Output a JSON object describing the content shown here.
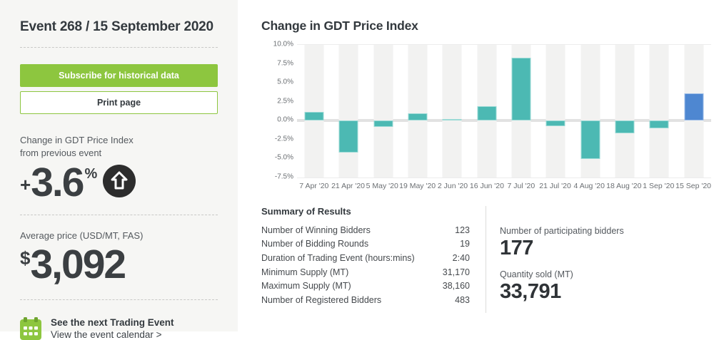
{
  "sidebar": {
    "title": "Event 268 / 15 September 2020",
    "subscribe_label": "Subscribe for historical data",
    "print_label": "Print page",
    "change_label_line1": "Change in GDT Price Index",
    "change_label_line2": "from previous event",
    "change_sign": "+",
    "change_value": "3.6",
    "change_unit": "%",
    "avg_price_label": "Average price (USD/MT, FAS)",
    "avg_price_currency": "$",
    "avg_price_value": "3,092",
    "next_event_title": "See the next Trading Event",
    "next_event_link": "View the event calendar >"
  },
  "chart": {
    "title": "Change in GDT Price Index"
  },
  "chart_data": {
    "type": "bar",
    "title": "Change in GDT Price Index",
    "categories": [
      "7 Apr '20",
      "21 Apr '20",
      "5 May '20",
      "19 May '20",
      "2 Jun '20",
      "16 Jun '20",
      "7 Jul '20",
      "21 Jul '20",
      "4 Aug '20",
      "18 Aug '20",
      "1 Sep '20",
      "15 Sep '20"
    ],
    "values": [
      1.2,
      -4.2,
      -0.8,
      1.0,
      0.1,
      1.9,
      8.3,
      -0.7,
      -5.1,
      -1.7,
      -1.0,
      3.6
    ],
    "highlight_index": 11,
    "ylabel": "",
    "xlabel": "",
    "ylim": [
      -7.5,
      10.0
    ],
    "ytick_labels": [
      "10.0%",
      "7.5%",
      "5.0%",
      "2.5%",
      "0.0%",
      "-2.5%",
      "-5.0%",
      "-7.5%"
    ],
    "ytick_values": [
      10.0,
      7.5,
      5.0,
      2.5,
      0.0,
      -2.5,
      -5.0,
      -7.5
    ],
    "grid": "zero-line and top line only, alternating column bands",
    "legend": "none",
    "bar_color": "#4cb9b3",
    "bar_border_color": "#9bdad6",
    "highlight_color": "#4e87d1",
    "highlight_border_color": "#9dbde8"
  },
  "summary": {
    "title": "Summary of Results",
    "rows": [
      {
        "label": "Number of Winning Bidders",
        "value": "123"
      },
      {
        "label": "Number of Bidding Rounds",
        "value": "19"
      },
      {
        "label": "Duration of Trading Event (hours:mins)",
        "value": "2:40"
      },
      {
        "label": "Minimum Supply (MT)",
        "value": "31,170"
      },
      {
        "label": "Maximum Supply (MT)",
        "value": "38,160"
      },
      {
        "label": "Number of Registered Bidders",
        "value": "483"
      }
    ],
    "stats": [
      {
        "label": "Number of participating bidders",
        "value": "177"
      },
      {
        "label": "Quantity sold (MT)",
        "value": "33,791"
      }
    ]
  },
  "colors": {
    "accent_green": "#8dc63f",
    "sidebar_bg": "#f6f6f4",
    "band_grey": "#f2f2f1",
    "zero_line": "#e2e2e2",
    "dark_circle": "#2d2d2d",
    "text_dark": "#33393e"
  }
}
